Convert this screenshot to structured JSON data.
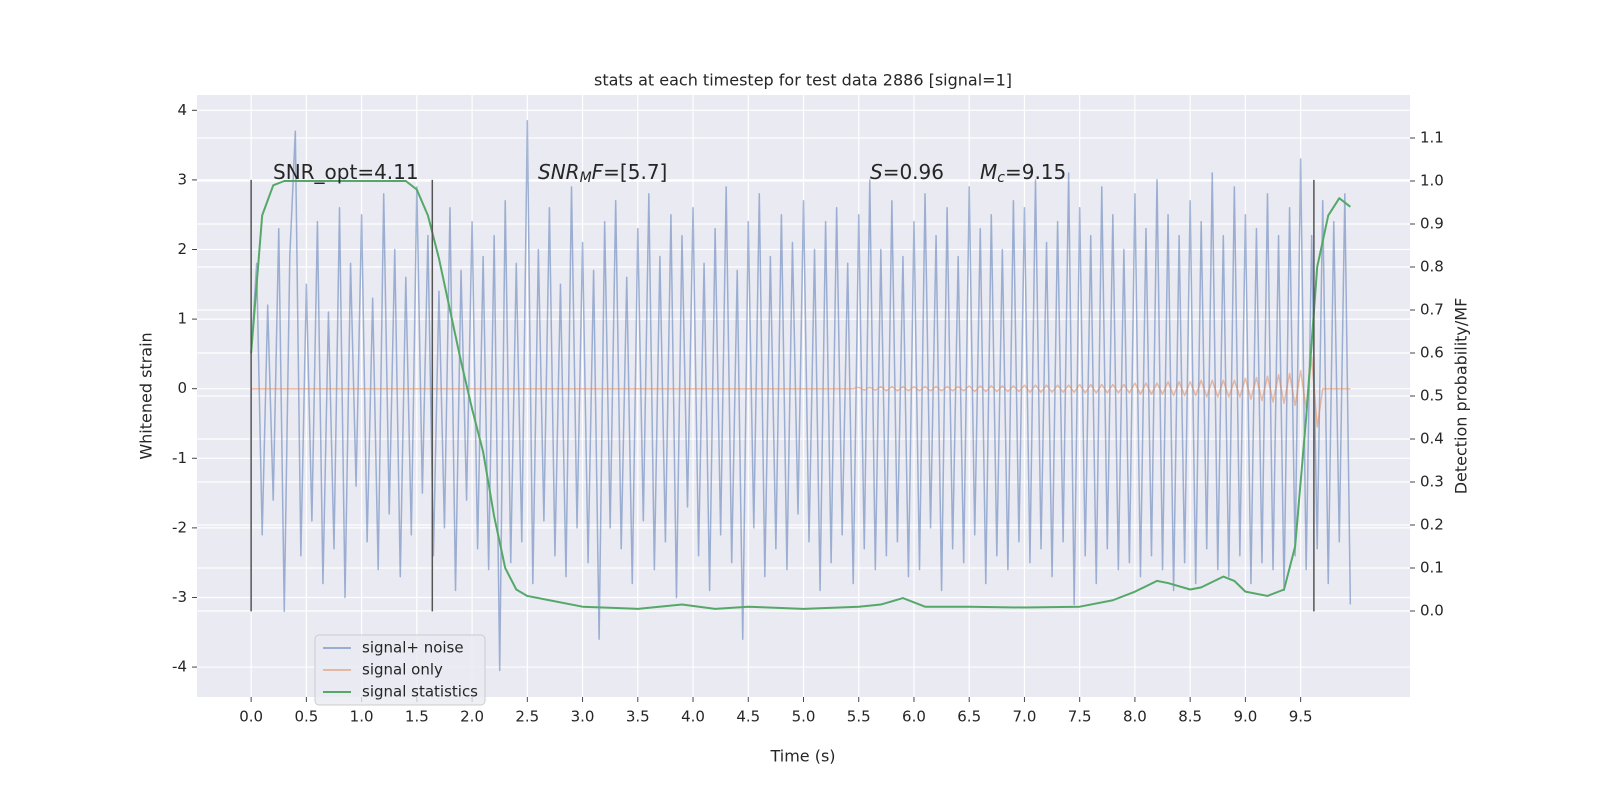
{
  "chart_data": {
    "type": "line",
    "title": "stats at each timestep for test data 2886 [signal=1]",
    "x_label": "Time (s)",
    "y_label": "Whitened strain",
    "y2_label": "Detection probability/MF",
    "xlim": [
      -0.49,
      10.49
    ],
    "ylim": [
      -4.43,
      4.22
    ],
    "y2lim": [
      -0.2,
      1.2
    ],
    "xticks": [
      {
        "value": 0,
        "label": "0.0"
      },
      0.5,
      {
        "value": 1,
        "label": "1.0"
      },
      1.5,
      {
        "value": 2,
        "label": "2.0"
      },
      2.5,
      {
        "value": 3,
        "label": "3.0"
      },
      3.5,
      {
        "value": 4,
        "label": "4.0"
      },
      4.5,
      {
        "value": 5,
        "label": "5.0"
      },
      5.5,
      {
        "value": 6,
        "label": "6.0"
      },
      6.5,
      {
        "value": 7,
        "label": "7.0"
      },
      7.5,
      {
        "value": 8,
        "label": "8.0"
      },
      8.5,
      {
        "value": 9,
        "label": "9.0"
      },
      9.5
    ],
    "yticks": [
      -4,
      -3,
      -2,
      -1,
      0,
      1,
      2,
      3,
      4
    ],
    "y2ticks": [
      {
        "value": 0,
        "label": "0.0"
      },
      0.1,
      0.2,
      0.3,
      0.4,
      0.5,
      0.6,
      0.7,
      0.8,
      0.9,
      {
        "value": 1,
        "label": "1.0"
      },
      1.1
    ],
    "grid": true,
    "vlines": [
      0,
      1.64,
      9.62
    ],
    "vline_range": [
      -3.2,
      3
    ],
    "vline_color": "#555555",
    "annotations": [
      {
        "parts": [
          {
            "text": "SNR_opt=4.11"
          }
        ]
      },
      {
        "parts": [
          {
            "text": "SNR",
            "italic": true
          },
          {
            "text": "M",
            "italic": true,
            "sub": true
          },
          {
            "text": "F",
            "italic": true
          },
          {
            "text": "=[5.7]"
          }
        ]
      },
      {
        "parts": [
          {
            "text": "S",
            "italic": true
          },
          {
            "text": "=0.96"
          }
        ]
      },
      {
        "parts": [
          {
            "text": "M",
            "italic": true
          },
          {
            "text": "c",
            "italic": true,
            "sub": true
          },
          {
            "text": "=9.15"
          }
        ]
      }
    ],
    "x": [
      0,
      0.05,
      0.1,
      0.15,
      0.2,
      0.25,
      0.3,
      0.35,
      0.4,
      0.45,
      0.5,
      0.55,
      0.6,
      0.65,
      0.7,
      0.75,
      0.8,
      0.85,
      0.9,
      0.95,
      1,
      1.05,
      1.1,
      1.15,
      1.2,
      1.25,
      1.3,
      1.35,
      1.4,
      1.45,
      1.5,
      1.55,
      1.6,
      1.65,
      1.7,
      1.75,
      1.8,
      1.85,
      1.9,
      1.95,
      2,
      2.05,
      2.1,
      2.15,
      2.2,
      2.25,
      2.3,
      2.35,
      2.4,
      2.45,
      2.5,
      2.55,
      2.6,
      2.65,
      2.7,
      2.75,
      2.8,
      2.85,
      2.9,
      2.95,
      3,
      3.05,
      3.1,
      3.15,
      3.2,
      3.25,
      3.3,
      3.35,
      3.4,
      3.45,
      3.5,
      3.55,
      3.6,
      3.65,
      3.7,
      3.75,
      3.8,
      3.85,
      3.9,
      3.95,
      4,
      4.05,
      4.1,
      4.15,
      4.2,
      4.25,
      4.3,
      4.35,
      4.4,
      4.45,
      4.5,
      4.55,
      4.6,
      4.65,
      4.7,
      4.75,
      4.8,
      4.85,
      4.9,
      4.95,
      5,
      5.05,
      5.1,
      5.15,
      5.2,
      5.25,
      5.3,
      5.35,
      5.4,
      5.45,
      5.5,
      5.55,
      5.6,
      5.65,
      5.7,
      5.75,
      5.8,
      5.85,
      5.9,
      5.95,
      6,
      6.05,
      6.1,
      6.15,
      6.2,
      6.25,
      6.3,
      6.35,
      6.4,
      6.45,
      6.5,
      6.55,
      6.6,
      6.65,
      6.7,
      6.75,
      6.8,
      6.85,
      6.9,
      6.95,
      7,
      7.05,
      7.1,
      7.15,
      7.2,
      7.25,
      7.3,
      7.35,
      7.4,
      7.45,
      7.5,
      7.55,
      7.6,
      7.65,
      7.7,
      7.75,
      7.8,
      7.85,
      7.9,
      7.95,
      8,
      8.05,
      8.1,
      8.15,
      8.2,
      8.25,
      8.3,
      8.35,
      8.4,
      8.45,
      8.5,
      8.55,
      8.6,
      8.65,
      8.7,
      8.75,
      8.8,
      8.85,
      8.9,
      8.95,
      9,
      9.05,
      9.1,
      9.15,
      9.2,
      9.25,
      9.3,
      9.35,
      9.4,
      9.45,
      9.5,
      9.55,
      9.6,
      9.65,
      9.7,
      9.75,
      9.8,
      9.85,
      9.9,
      9.95
    ],
    "series": [
      {
        "name": "signal+ noise",
        "color": "#4c72b0",
        "opacity": 0.5,
        "values": [
          0.5,
          1.8,
          -2.1,
          1.2,
          -1.6,
          2.3,
          -3.2,
          1.9,
          3.7,
          -2.4,
          1.5,
          -1.9,
          2.4,
          -2.8,
          1.1,
          -2.3,
          2.6,
          -3.0,
          1.8,
          -1.4,
          2.5,
          -2.2,
          1.3,
          -2.6,
          2.8,
          -1.8,
          2.0,
          -2.7,
          1.6,
          -2.1,
          2.9,
          -1.5,
          2.2,
          -2.4,
          1.4,
          -2.0,
          2.6,
          -2.9,
          1.7,
          -1.6,
          2.4,
          -2.3,
          1.9,
          -2.6,
          2.2,
          -4.05,
          2.7,
          -2.5,
          1.8,
          -2.2,
          3.85,
          -2.8,
          2.0,
          -1.9,
          2.6,
          -2.4,
          1.5,
          -2.7,
          2.9,
          -2.0,
          2.1,
          -2.5,
          1.7,
          -3.6,
          2.4,
          -2.0,
          2.7,
          -2.3,
          1.6,
          -2.8,
          2.3,
          -1.9,
          2.8,
          -2.6,
          1.9,
          -2.2,
          2.5,
          -3.0,
          2.2,
          -1.7,
          2.6,
          -2.4,
          1.8,
          -2.9,
          2.3,
          -2.1,
          2.9,
          -2.5,
          1.7,
          -3.6,
          2.4,
          -2.0,
          2.8,
          -2.7,
          1.9,
          -2.3,
          2.5,
          -2.6,
          2.1,
          -1.8,
          2.7,
          -2.2,
          2.0,
          -2.9,
          2.4,
          -2.5,
          2.6,
          -2.1,
          1.8,
          -2.8,
          2.5,
          -2.3,
          3.0,
          -2.6,
          2.0,
          -2.4,
          2.7,
          -2.2,
          1.9,
          -2.7,
          2.4,
          -2.6,
          2.8,
          -2.0,
          2.2,
          -2.9,
          2.6,
          -2.3,
          1.9,
          -2.5,
          2.9,
          -2.1,
          2.3,
          -2.8,
          2.5,
          -2.4,
          2.0,
          -2.6,
          2.7,
          -2.2,
          2.6,
          -2.5,
          3.0,
          -2.3,
          2.1,
          -2.7,
          2.4,
          -2.2,
          3.1,
          -3.1,
          2.6,
          -2.4,
          2.2,
          -2.8,
          2.9,
          -2.3,
          2.5,
          -2.6,
          2.0,
          -2.5,
          2.8,
          -2.7,
          2.3,
          -2.4,
          3.0,
          -2.6,
          2.5,
          -2.9,
          2.2,
          -2.5,
          2.7,
          -2.8,
          2.4,
          -2.3,
          3.1,
          -2.6,
          2.2,
          -2.7,
          2.9,
          -2.4,
          2.5,
          -2.8,
          2.3,
          -2.5,
          2.8,
          -2.6,
          2.2,
          -2.9,
          2.6,
          -2.4,
          3.3,
          -2.6,
          2.2,
          -2.3,
          2.7,
          -2.8,
          2.4,
          -2.2,
          2.8,
          -3.1
        ]
      },
      {
        "name": "signal only",
        "color": "#dd8452",
        "opacity": 0.5,
        "values": [
          0,
          0,
          0,
          0,
          0,
          0,
          0,
          0,
          0,
          0,
          0,
          0,
          0,
          0,
          0,
          0,
          0,
          0,
          0,
          0,
          0,
          0,
          0,
          0,
          0,
          0,
          0,
          0,
          0,
          0,
          0,
          0,
          0,
          0,
          0,
          0,
          0,
          0,
          0,
          0,
          0,
          0,
          0,
          0,
          0,
          0,
          0,
          0,
          0,
          0,
          0,
          0,
          0,
          0,
          0,
          0,
          0,
          0,
          0,
          0,
          0,
          0,
          0,
          0,
          0,
          0,
          0,
          0,
          0,
          0,
          0,
          0,
          0,
          0,
          0,
          0,
          0,
          0,
          0,
          0,
          0,
          0,
          0,
          0,
          0,
          0,
          0,
          0,
          0,
          0,
          0,
          0,
          0,
          0,
          0,
          0,
          0,
          0,
          0,
          0,
          0,
          0,
          0,
          0,
          0,
          0,
          0,
          0,
          0,
          0,
          0.02,
          -0.02,
          0.02,
          -0.02,
          0.03,
          -0.03,
          0.03,
          -0.03,
          0.03,
          -0.03,
          0.03,
          -0.03,
          0.03,
          -0.03,
          0.03,
          -0.03,
          0.03,
          -0.03,
          0.03,
          -0.03,
          0.04,
          -0.04,
          0.04,
          -0.04,
          0.04,
          -0.04,
          0.04,
          -0.04,
          0.04,
          -0.04,
          0.05,
          -0.05,
          0.05,
          -0.05,
          0.05,
          -0.05,
          0.05,
          -0.05,
          0.05,
          -0.05,
          0.06,
          -0.06,
          0.06,
          -0.06,
          0.06,
          -0.06,
          0.06,
          -0.06,
          0.06,
          -0.06,
          0.08,
          -0.08,
          0.08,
          -0.08,
          0.08,
          -0.08,
          0.1,
          -0.1,
          0.1,
          -0.1,
          0.1,
          -0.1,
          0.12,
          -0.12,
          0.12,
          -0.12,
          0.12,
          -0.12,
          0.12,
          -0.12,
          0.15,
          -0.15,
          0.16,
          -0.17,
          0.18,
          -0.19,
          0.2,
          -0.21,
          0.22,
          -0.24,
          0.26,
          -0.28,
          0.45,
          -0.55,
          0,
          0,
          0,
          0,
          0,
          0
        ]
      },
      {
        "name": "signal statistics",
        "color": "#55a868",
        "opacity": 1,
        "axis": "y2",
        "x": [
          0,
          0.1,
          0.2,
          0.3,
          0.6,
          1.0,
          1.4,
          1.5,
          1.6,
          1.7,
          1.8,
          1.9,
          2.0,
          2.1,
          2.2,
          2.3,
          2.4,
          2.5,
          2.7,
          3.0,
          3.5,
          3.9,
          4.2,
          4.5,
          5.0,
          5.5,
          5.7,
          5.9,
          6.1,
          6.5,
          7.0,
          7.5,
          7.8,
          8.0,
          8.2,
          8.3,
          8.5,
          8.6,
          8.8,
          8.9,
          9.0,
          9.2,
          9.35,
          9.45,
          9.55,
          9.65,
          9.75,
          9.85,
          9.95
        ],
        "values": [
          0.6,
          0.92,
          0.99,
          1.0,
          1.0,
          1.0,
          1.0,
          0.98,
          0.92,
          0.82,
          0.7,
          0.58,
          0.47,
          0.37,
          0.22,
          0.1,
          0.05,
          0.035,
          0.025,
          0.01,
          0.005,
          0.015,
          0.005,
          0.01,
          0.005,
          0.01,
          0.015,
          0.03,
          0.01,
          0.01,
          0.008,
          0.01,
          0.025,
          0.045,
          0.07,
          0.065,
          0.05,
          0.055,
          0.08,
          0.07,
          0.045,
          0.035,
          0.05,
          0.15,
          0.45,
          0.8,
          0.92,
          0.96,
          0.94
        ]
      }
    ]
  }
}
